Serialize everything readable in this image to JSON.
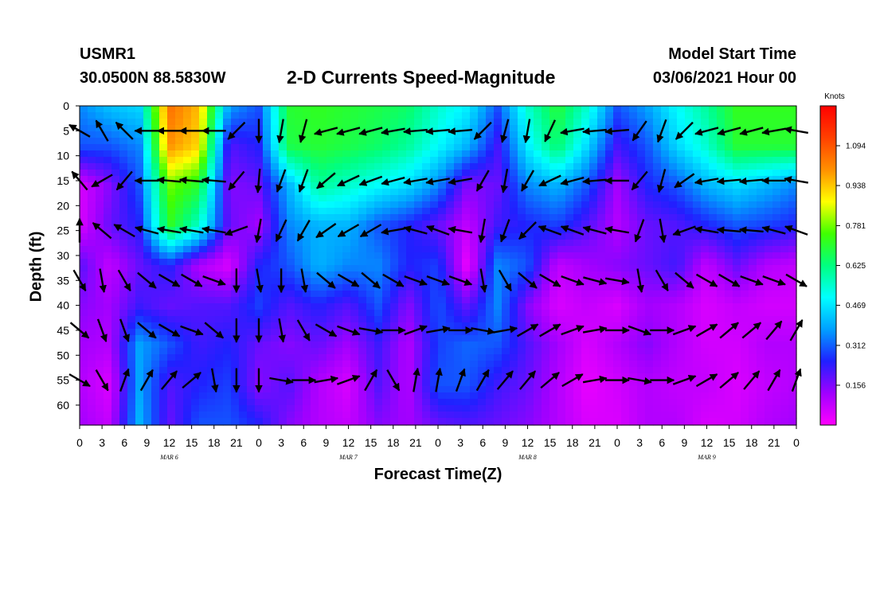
{
  "header": {
    "station": "USMR1",
    "coords": "30.0500N 88.5830W",
    "title": "2-D Currents Speed-Magnitude",
    "model_start_label": "Model Start Time",
    "model_start_value": "03/06/2021 Hour 00"
  },
  "chart_data": {
    "type": "heatmap",
    "title": "2-D Currents Speed-Magnitude",
    "xlabel": "Forecast Time(Z)",
    "ylabel": "Depth (ft)",
    "x_tick_labels": [
      "0",
      "3",
      "6",
      "9",
      "12",
      "15",
      "18",
      "21",
      "0",
      "3",
      "6",
      "9",
      "12",
      "15",
      "18",
      "21",
      "0",
      "3",
      "6",
      "9",
      "12",
      "15",
      "18",
      "21",
      "0",
      "3",
      "6",
      "9",
      "12",
      "15",
      "18",
      "21",
      "0"
    ],
    "x_range_hours": [
      0,
      96
    ],
    "day_labels": [
      {
        "label": "MAR  6",
        "hour": 12
      },
      {
        "label": "MAR  7",
        "hour": 36
      },
      {
        "label": "MAR  8",
        "hour": 60
      },
      {
        "label": "MAR  9",
        "hour": 84
      }
    ],
    "y_tick_labels": [
      "0",
      "5",
      "10",
      "15",
      "20",
      "25",
      "30",
      "35",
      "40",
      "45",
      "50",
      "55",
      "60"
    ],
    "y_range_ft": [
      0,
      64
    ],
    "colorbar": {
      "unit": "Knots",
      "ticks": [
        "1.094",
        "0.938",
        "0.781",
        "0.625",
        "0.469",
        "0.312",
        "0.156"
      ],
      "range": [
        0,
        1.25
      ],
      "colors": [
        "#ff00ff",
        "#a000ff",
        "#2020ff",
        "#00a0ff",
        "#00ffff",
        "#00ff80",
        "#40ff00",
        "#ffff00",
        "#ff9000",
        "#ff4000",
        "#ff0000"
      ]
    },
    "speed_grid": {
      "hours": [
        0,
        4,
        8,
        12,
        16,
        20,
        24,
        28,
        32,
        36,
        40,
        44,
        48,
        52,
        56,
        60,
        64,
        68,
        72,
        76,
        80,
        84,
        88,
        92,
        96
      ],
      "depths": [
        0,
        8,
        16,
        24,
        32,
        40,
        48,
        56,
        64
      ],
      "values_knots": [
        [
          0.35,
          0.42,
          0.45,
          1.05,
          0.95,
          0.38,
          0.3,
          0.7,
          0.72,
          0.7,
          0.68,
          0.65,
          0.55,
          0.48,
          0.3,
          0.55,
          0.7,
          0.55,
          0.3,
          0.38,
          0.5,
          0.6,
          0.72,
          0.72,
          0.72
        ],
        [
          0.3,
          0.3,
          0.35,
          1.0,
          0.92,
          0.2,
          0.25,
          0.68,
          0.7,
          0.68,
          0.65,
          0.6,
          0.5,
          0.4,
          0.22,
          0.48,
          0.65,
          0.45,
          0.22,
          0.3,
          0.45,
          0.55,
          0.7,
          0.7,
          0.7
        ],
        [
          0.05,
          0.15,
          0.3,
          0.78,
          0.7,
          0.15,
          0.18,
          0.4,
          0.6,
          0.55,
          0.5,
          0.45,
          0.35,
          0.15,
          0.18,
          0.35,
          0.4,
          0.3,
          0.12,
          0.25,
          0.3,
          0.4,
          0.45,
          0.4,
          0.35
        ],
        [
          0.05,
          0.18,
          0.25,
          0.72,
          0.55,
          0.18,
          0.12,
          0.35,
          0.4,
          0.4,
          0.3,
          0.25,
          0.18,
          0.08,
          0.22,
          0.25,
          0.28,
          0.2,
          0.1,
          0.18,
          0.2,
          0.25,
          0.3,
          0.28,
          0.25
        ],
        [
          0.2,
          0.08,
          0.18,
          0.25,
          0.1,
          0.05,
          0.25,
          0.3,
          0.4,
          0.35,
          0.35,
          0.25,
          0.28,
          0.02,
          0.35,
          0.3,
          0.08,
          0.12,
          0.15,
          0.18,
          0.22,
          0.08,
          0.18,
          0.1,
          0.08
        ],
        [
          0.15,
          0.12,
          0.22,
          0.18,
          0.2,
          0.2,
          0.28,
          0.2,
          0.25,
          0.2,
          0.3,
          0.15,
          0.3,
          0.18,
          0.35,
          0.15,
          0.05,
          0.08,
          0.05,
          0.12,
          0.1,
          0.05,
          0.08,
          0.06,
          0.06
        ],
        [
          0.12,
          0.1,
          0.38,
          0.3,
          0.22,
          0.25,
          0.18,
          0.15,
          0.18,
          0.12,
          0.22,
          0.1,
          0.28,
          0.32,
          0.3,
          0.2,
          0.12,
          0.05,
          0.1,
          0.15,
          0.1,
          0.06,
          0.06,
          0.1,
          0.1
        ],
        [
          0.1,
          0.05,
          0.38,
          0.2,
          0.25,
          0.28,
          0.15,
          0.2,
          0.1,
          0.05,
          0.2,
          0.1,
          0.3,
          0.3,
          0.22,
          0.18,
          0.1,
          0.03,
          0.06,
          0.1,
          0.08,
          0.08,
          0.05,
          0.08,
          0.1
        ],
        [
          0.12,
          0.08,
          0.4,
          0.18,
          0.3,
          0.3,
          0.25,
          0.15,
          0.1,
          0.08,
          0.15,
          0.12,
          0.18,
          0.2,
          0.18,
          0.15,
          0.1,
          0.05,
          0.05,
          0.1,
          0.1,
          0.05,
          0.06,
          0.1,
          0.12
        ]
      ]
    },
    "vector_grid": {
      "hours": [
        0,
        3,
        6,
        9,
        12,
        15,
        18,
        21,
        24,
        27,
        30,
        33,
        36,
        39,
        42,
        45,
        48,
        51,
        54,
        57,
        60,
        63,
        66,
        69,
        72,
        75,
        78,
        81,
        84,
        87,
        90,
        93,
        96
      ],
      "depths": [
        5,
        15,
        25,
        35,
        45,
        55
      ],
      "directions_deg_from_east": [
        [
          150,
          120,
          135,
          180,
          180,
          180,
          180,
          225,
          270,
          260,
          255,
          195,
          195,
          195,
          190,
          185,
          185,
          185,
          225,
          255,
          260,
          245,
          190,
          185,
          185,
          235,
          250,
          225,
          195,
          195,
          195,
          190,
          170
        ],
        [
          130,
          210,
          230,
          180,
          175,
          175,
          175,
          230,
          265,
          250,
          250,
          220,
          205,
          200,
          195,
          190,
          190,
          190,
          240,
          260,
          240,
          205,
          195,
          185,
          180,
          230,
          255,
          215,
          190,
          185,
          185,
          180,
          170
        ],
        [
          90,
          140,
          150,
          165,
          170,
          170,
          170,
          200,
          260,
          245,
          240,
          215,
          210,
          210,
          190,
          165,
          160,
          170,
          260,
          250,
          225,
          160,
          160,
          165,
          170,
          250,
          280,
          200,
          170,
          175,
          175,
          165,
          160
        ],
        [
          -60,
          -80,
          -60,
          -40,
          -30,
          -30,
          -20,
          -90,
          -80,
          -90,
          -80,
          -40,
          -30,
          -40,
          -30,
          -20,
          -20,
          -20,
          -80,
          -60,
          -40,
          -30,
          -20,
          -15,
          -10,
          -80,
          -60,
          -40,
          -30,
          -30,
          -20,
          -20,
          -30
        ],
        [
          -40,
          -70,
          -70,
          -40,
          -30,
          -20,
          -40,
          -90,
          -90,
          -80,
          -60,
          -30,
          -20,
          -10,
          0,
          20,
          10,
          0,
          -10,
          10,
          30,
          30,
          20,
          10,
          0,
          -20,
          0,
          20,
          30,
          40,
          40,
          50,
          60
        ],
        [
          -30,
          -60,
          70,
          60,
          50,
          40,
          -80,
          -90,
          -90,
          -10,
          0,
          10,
          20,
          60,
          -60,
          80,
          80,
          70,
          60,
          50,
          50,
          40,
          30,
          10,
          0,
          -10,
          0,
          20,
          30,
          40,
          50,
          60,
          70
        ]
      ]
    }
  }
}
